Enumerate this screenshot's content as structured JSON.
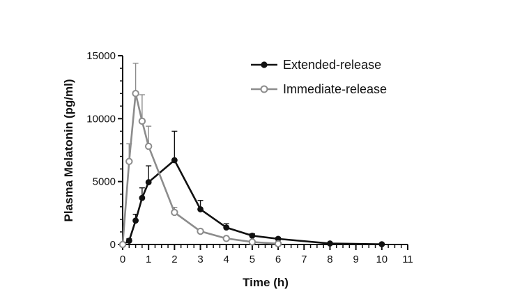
{
  "chart_data": {
    "type": "line",
    "xlabel": "Time (h)",
    "ylabel": "Plasma Melatonin (pg/ml)",
    "xlim": [
      0,
      11
    ],
    "ylim": [
      0,
      15000
    ],
    "x_ticks": [
      0,
      1,
      2,
      3,
      4,
      5,
      6,
      7,
      8,
      9,
      10,
      11
    ],
    "y_ticks": [
      0,
      5000,
      10000,
      15000
    ],
    "x_tick_labels": [
      "0",
      "1",
      "2",
      "3",
      "4",
      "5",
      "6",
      "7",
      "8",
      "9",
      "10",
      "11"
    ],
    "y_tick_labels": [
      "0",
      "5000",
      "10000",
      "15000"
    ],
    "grid": false,
    "legend_position": "top-right",
    "series": [
      {
        "name": "Extended-release",
        "color": "#111111",
        "marker": "filled-circle",
        "x": [
          0,
          0.25,
          0.5,
          0.75,
          1,
          2,
          3,
          4,
          5,
          6,
          8,
          10
        ],
        "y": [
          0,
          300,
          1900,
          3700,
          4950,
          6700,
          2800,
          1350,
          700,
          450,
          80,
          20
        ],
        "error": [
          0,
          150,
          500,
          800,
          1300,
          2300,
          700,
          300,
          150,
          100,
          40,
          20
        ]
      },
      {
        "name": "Immediate-release",
        "color": "#8c8c8c",
        "marker": "open-circle",
        "x": [
          0,
          0.25,
          0.5,
          0.75,
          1,
          2,
          3,
          4,
          5,
          6
        ],
        "y": [
          0,
          6600,
          12000,
          9800,
          7800,
          2550,
          1050,
          480,
          200,
          60
        ],
        "error": [
          0,
          1400,
          2400,
          2100,
          1600,
          400,
          150,
          80,
          50,
          20
        ]
      }
    ]
  }
}
